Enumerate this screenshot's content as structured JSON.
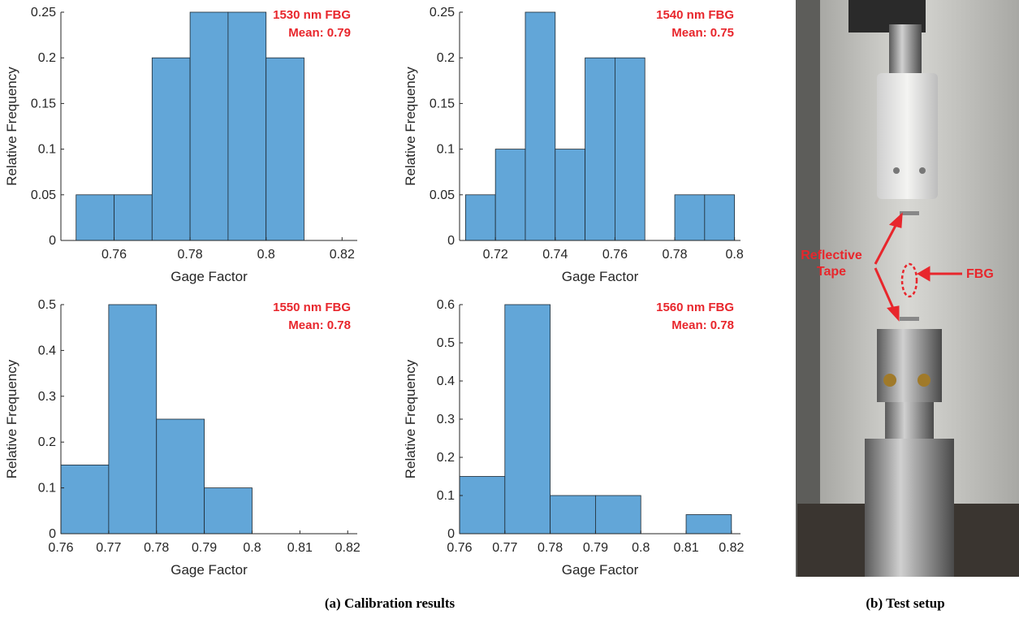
{
  "chart_data": [
    {
      "type": "histogram",
      "annotation": [
        "1530 nm FBG",
        "Mean: 0.79"
      ],
      "xlabel": "Gage Factor",
      "ylabel": "Relative Frequency",
      "bins": [
        0.75,
        0.76,
        0.77,
        0.78,
        0.79,
        0.8,
        0.81
      ],
      "values": [
        0.05,
        0.05,
        0.2,
        0.25,
        0.25,
        0.2
      ],
      "color": "#62a6d8",
      "xlim": [
        0.746,
        0.824
      ],
      "xticks": [
        0.76,
        0.78,
        0.8,
        0.82
      ],
      "ylim": [
        0,
        0.25
      ],
      "yticks": [
        0,
        0.05,
        0.1,
        0.15,
        0.2,
        0.25
      ]
    },
    {
      "type": "histogram",
      "annotation": [
        "1540 nm FBG",
        "Mean: 0.75"
      ],
      "xlabel": "Gage Factor",
      "ylabel": "Relative Frequency",
      "bins": [
        0.71,
        0.72,
        0.73,
        0.74,
        0.75,
        0.76,
        0.77,
        0.78,
        0.79,
        0.8
      ],
      "values": [
        0.05,
        0.1,
        0.25,
        0.1,
        0.2,
        0.2,
        0,
        0.05,
        0.05
      ],
      "color": "#62a6d8",
      "xlim": [
        0.708,
        0.802
      ],
      "xticks": [
        0.72,
        0.74,
        0.76,
        0.78,
        0.8
      ],
      "ylim": [
        0,
        0.25
      ],
      "yticks": [
        0,
        0.05,
        0.1,
        0.15,
        0.2,
        0.25
      ]
    },
    {
      "type": "histogram",
      "annotation": [
        "1550 nm FBG",
        "Mean: 0.78"
      ],
      "xlabel": "Gage Factor",
      "ylabel": "Relative Frequency",
      "bins": [
        0.76,
        0.77,
        0.78,
        0.79,
        0.8
      ],
      "values": [
        0.15,
        0.5,
        0.25,
        0.1
      ],
      "color": "#62a6d8",
      "xlim": [
        0.76,
        0.822
      ],
      "xticks": [
        0.76,
        0.77,
        0.78,
        0.79,
        0.8,
        0.81,
        0.82
      ],
      "ylim": [
        0,
        0.5
      ],
      "yticks": [
        0,
        0.1,
        0.2,
        0.3,
        0.4,
        0.5
      ]
    },
    {
      "type": "histogram",
      "annotation": [
        "1560 nm FBG",
        "Mean: 0.78"
      ],
      "xlabel": "Gage Factor",
      "ylabel": "Relative Frequency",
      "bins": [
        0.76,
        0.77,
        0.78,
        0.79,
        0.8,
        0.81,
        0.82
      ],
      "values": [
        0.15,
        0.6,
        0.1,
        0.1,
        0,
        0.05
      ],
      "color": "#62a6d8",
      "xlim": [
        0.76,
        0.822
      ],
      "xticks": [
        0.76,
        0.77,
        0.78,
        0.79,
        0.8,
        0.81,
        0.82
      ],
      "ylim": [
        0,
        0.6
      ],
      "yticks": [
        0,
        0.1,
        0.2,
        0.3,
        0.4,
        0.5,
        0.6
      ]
    }
  ],
  "photo": {
    "tape_label": [
      "Reflective",
      "Tape"
    ],
    "fbg_label": "FBG"
  },
  "captions": {
    "a": "(a) Calibration results",
    "b": "(b) Test setup"
  }
}
